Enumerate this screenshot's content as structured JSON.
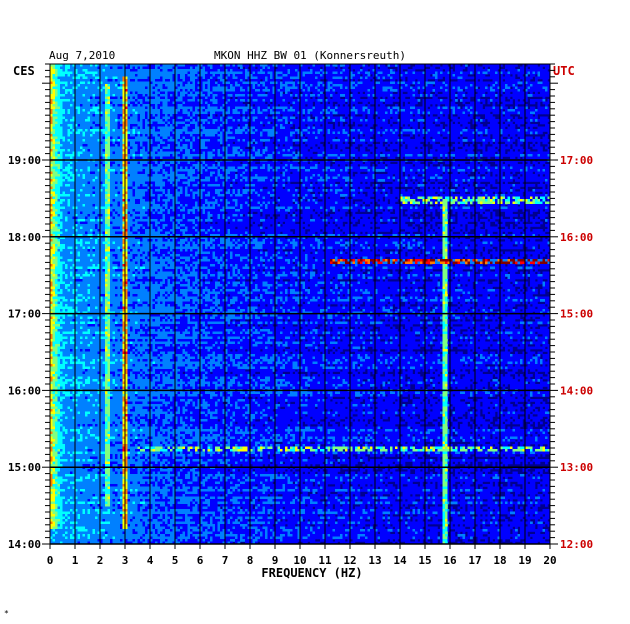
{
  "header": {
    "date": "Aug 7,2010",
    "station": "MKON HHZ BW 01 (Konnersreuth)",
    "left_zone": "CES",
    "right_zone": "UTC"
  },
  "corner_mark": "*",
  "colors": {
    "background": "#00008f",
    "left_axis_text": "#000000",
    "right_axis_text": "#cc0000",
    "grid": "#000000"
  },
  "chart_data": {
    "type": "heatmap",
    "xlabel": "FREQUENCY (HZ)",
    "x_ticks": [
      "0",
      "1",
      "2",
      "3",
      "4",
      "5",
      "6",
      "7",
      "8",
      "9",
      "10",
      "11",
      "12",
      "13",
      "14",
      "15",
      "16",
      "17",
      "18",
      "19",
      "20"
    ],
    "xlim": [
      0,
      20
    ],
    "y_left_ticks": [
      {
        "label": "19:00",
        "hour": 19
      },
      {
        "label": "18:00",
        "hour": 18
      },
      {
        "label": "17:00",
        "hour": 17
      },
      {
        "label": "16:00",
        "hour": 16
      },
      {
        "label": "15:00",
        "hour": 15
      },
      {
        "label": "14:00",
        "hour": 14
      }
    ],
    "y_right_ticks": [
      {
        "label": "17:00",
        "hour": 17
      },
      {
        "label": "16:00",
        "hour": 16
      },
      {
        "label": "15:00",
        "hour": 15
      },
      {
        "label": "14:00",
        "hour": 14
      },
      {
        "label": "13:00",
        "hour": 13
      },
      {
        "label": "12:00",
        "hour": 12
      }
    ],
    "ylim_local_hours": [
      14.0,
      20.25
    ],
    "colormap": [
      "#00008f",
      "#0000ff",
      "#0080ff",
      "#00ffff",
      "#80ff80",
      "#ffff00",
      "#ff8000",
      "#ff0000",
      "#800000"
    ],
    "features": [
      {
        "kind": "low-frequency noise band",
        "freq_hz": [
          0,
          1.5
        ],
        "local_time": [
          14.2,
          20.25
        ],
        "intensity": "high"
      },
      {
        "kind": "tonal line",
        "freq_hz": 3.0,
        "local_time": [
          14.2,
          20.1
        ],
        "intensity": "high"
      },
      {
        "kind": "tonal line",
        "freq_hz": 2.3,
        "local_time": [
          14.5,
          20.0
        ],
        "intensity": "medium"
      },
      {
        "kind": "intermittent line",
        "freq_hz": 15.8,
        "local_time": [
          14.0,
          18.5
        ],
        "intensity": "medium"
      },
      {
        "kind": "broadband burst",
        "freq_hz": [
          11.2,
          20
        ],
        "local_time": 17.67,
        "intensity": "very high"
      },
      {
        "kind": "broadband burst",
        "freq_hz": [
          14,
          20
        ],
        "local_time": 18.47,
        "intensity": "medium"
      },
      {
        "kind": "broadband burst",
        "freq_hz": [
          3.5,
          20
        ],
        "local_time": 15.23,
        "intensity": "medium"
      }
    ]
  }
}
